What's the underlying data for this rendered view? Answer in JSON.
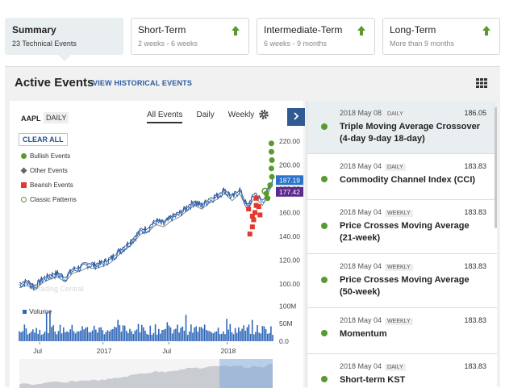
{
  "summary_cards": [
    {
      "title": "Summary",
      "subtitle": "23 Technical Events"
    },
    {
      "title": "Short-Term",
      "subtitle": "2 weeks - 6 weeks"
    },
    {
      "title": "Intermediate-Term",
      "subtitle": "6 weeks - 9 months"
    },
    {
      "title": "Long-Term",
      "subtitle": "More than 9 months"
    }
  ],
  "panel": {
    "title": "Active Events",
    "historical_link": "VIEW HISTORICAL EVENTS"
  },
  "chart_panel": {
    "symbol": "AAPL",
    "frequency": "DAILY",
    "tabs": [
      "All Events",
      "Daily",
      "Weekly"
    ],
    "clear_label": "CLEAR ALL",
    "legend": [
      "Bullish Events",
      "Other Events",
      "Bearish Events",
      "Classic Patterns"
    ],
    "volume_label": "Volume",
    "watermark": "Trading Central"
  },
  "colors": {
    "bullish": "#5a9a2c",
    "other": "#666666",
    "bearish": "#e03a2f",
    "price_line": "#2f67b8",
    "badge_blue": "#2a73c9",
    "badge_purple": "#5b2a8c",
    "nav_blue": "#2f5b92"
  },
  "chart_data": {
    "type": "line",
    "title": "",
    "ylim": [
      90,
      228
    ],
    "y_ticks": [
      "220.00",
      "200.00",
      "180.00",
      "160.00",
      "140.00",
      "120.00",
      "100.00"
    ],
    "y_tick_values": [
      220,
      200,
      180,
      160,
      140,
      120,
      100
    ],
    "price_badges": [
      {
        "label": "187.19",
        "value": 187.19,
        "color": "#2a73c9"
      },
      {
        "label": "177.42",
        "value": 177.42,
        "color": "#5b2a8c"
      }
    ],
    "volume_ticks": [
      "100M",
      "50M",
      "0.0"
    ],
    "volume_tick_values": [
      100,
      50,
      0
    ],
    "x_ticks": [
      "Jul",
      "2017",
      "Jul",
      "2018"
    ],
    "x_tick_t": [
      0.08,
      0.33,
      0.59,
      0.82
    ],
    "series": [
      {
        "name": "",
        "points": [
          [
            0.0,
            99
          ],
          [
            0.03,
            101
          ],
          [
            0.06,
            97
          ],
          [
            0.09,
            103
          ],
          [
            0.12,
            106
          ],
          [
            0.15,
            108
          ],
          [
            0.18,
            104
          ],
          [
            0.21,
            111
          ],
          [
            0.24,
            113
          ],
          [
            0.27,
            116
          ],
          [
            0.3,
            115
          ],
          [
            0.33,
            117
          ],
          [
            0.36,
            120
          ],
          [
            0.39,
            126
          ],
          [
            0.42,
            131
          ],
          [
            0.45,
            137
          ],
          [
            0.48,
            144
          ],
          [
            0.51,
            146
          ],
          [
            0.54,
            152
          ],
          [
            0.57,
            150
          ],
          [
            0.6,
            155
          ],
          [
            0.63,
            158
          ],
          [
            0.66,
            163
          ],
          [
            0.69,
            168
          ],
          [
            0.72,
            165
          ],
          [
            0.75,
            170
          ],
          [
            0.78,
            173
          ],
          [
            0.81,
            178
          ],
          [
            0.84,
            172
          ],
          [
            0.87,
            178
          ],
          [
            0.9,
            164
          ],
          [
            0.93,
            175
          ],
          [
            0.96,
            168
          ],
          [
            1.0,
            186
          ]
        ]
      }
    ]
  },
  "events": [
    {
      "date": "2018 May 08",
      "frequency": "DAILY",
      "price": "186.05",
      "name": "Triple Moving Average Crossover (4-day 9-day 18-day)"
    },
    {
      "date": "2018 May 04",
      "frequency": "DAILY",
      "price": "183.83",
      "name": "Commodity Channel Index (CCI)"
    },
    {
      "date": "2018 May 04",
      "frequency": "WEEKLY",
      "price": "183.83",
      "name": "Price Crosses Moving Average (21-week)"
    },
    {
      "date": "2018 May 04",
      "frequency": "WEEKLY",
      "price": "183.83",
      "name": "Price Crosses Moving Average (50-week)"
    },
    {
      "date": "2018 May 04",
      "frequency": "WEEKLY",
      "price": "183.83",
      "name": "Momentum"
    },
    {
      "date": "2018 May 04",
      "frequency": "DAILY",
      "price": "183.83",
      "name": "Short-term KST"
    }
  ]
}
